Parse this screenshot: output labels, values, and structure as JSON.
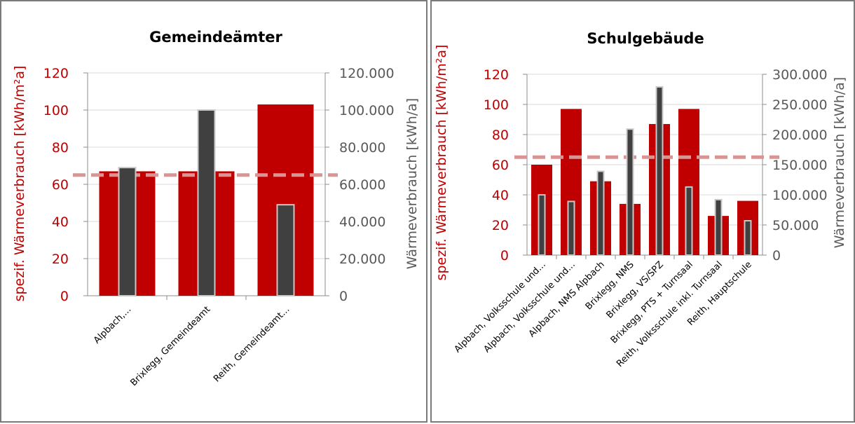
{
  "colors": {
    "primary_bar": "#c00000",
    "secondary_bar": "#404040",
    "secondary_bar_edge": "#c8c8c8",
    "reference_line": "#d99594",
    "left_axis_text": "#c00000",
    "right_axis_text": "#595959",
    "grid": "#d9d9d9",
    "axis": "#8c8c8c"
  },
  "chart_data": [
    {
      "type": "bar",
      "title": "Gemeindeämter",
      "categories": [
        "Alpbach,...",
        "Brixlegg, Gemeindeamt",
        "Reith, Gemeindeamt..."
      ],
      "ylabel_left": "spezif. Wärmeverbrauch [kWh/m²a]",
      "ylabel_right": "Wärmeverbrauch [kWh/a]",
      "ylim_left": [
        0,
        120
      ],
      "ylim_right": [
        0,
        120000
      ],
      "yticks_left": [
        "0",
        "20",
        "40",
        "60",
        "80",
        "100",
        "120"
      ],
      "yticks_right": [
        "0",
        "20.000",
        "40.000",
        "60.000",
        "80.000",
        "100.000",
        "120.000"
      ],
      "series": [
        {
          "axis": "left",
          "values": [
            67,
            67,
            103
          ]
        },
        {
          "axis": "right",
          "values": [
            69000,
            100000,
            49000
          ]
        }
      ],
      "reference_line_left": 65,
      "grid": true
    },
    {
      "type": "bar",
      "title": "Schulgebäude",
      "categories": [
        "Alpbach, Volksschule und...",
        "Alpbach, Volksschule und...",
        "Alpbach, NMS Alpbach",
        "Brixlegg, NMS",
        "Brixlegg, VS/SPZ",
        "Brixlegg, PTS + Turnsaal",
        "Reith, Volksschule inkl. Turnsaal",
        "Reith, Hauptschule"
      ],
      "ylabel_left": "spezif. Wärmeverbrauch [kWh/m²a]",
      "ylabel_right": "Wärmeverbrauch [kWh/a]",
      "ylim_left": [
        0,
        120
      ],
      "ylim_right": [
        0,
        300000
      ],
      "yticks_left": [
        "0",
        "20",
        "40",
        "60",
        "80",
        "100",
        "120"
      ],
      "yticks_right": [
        "0",
        "50.000",
        "100.000",
        "150.000",
        "200.000",
        "250.000",
        "300.000"
      ],
      "series": [
        {
          "axis": "left",
          "values": [
            60,
            97,
            49,
            34,
            87,
            97,
            26,
            36
          ]
        },
        {
          "axis": "right",
          "values": [
            100000,
            89000,
            139000,
            209000,
            279000,
            113000,
            92000,
            57000
          ]
        }
      ],
      "reference_line_left": 65,
      "grid": true
    }
  ]
}
